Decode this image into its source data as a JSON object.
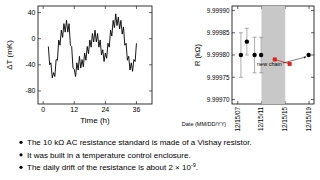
{
  "chart_data": [
    {
      "type": "line",
      "color": "#000000",
      "grid": false,
      "x_label": "Time (h)",
      "y_label": "ΔT (mK)",
      "xlim": [
        -2,
        42
      ],
      "xticks": [
        0,
        12,
        24,
        36
      ],
      "ylim": [
        -100,
        50
      ],
      "yticks": [
        -80,
        -40,
        0,
        40
      ],
      "x": [
        2,
        2.5,
        3,
        3.5,
        4,
        4.5,
        5,
        5.5,
        6,
        6.5,
        7,
        7.5,
        8,
        8.5,
        9,
        9.5,
        10,
        10.5,
        11,
        11.5,
        12,
        12.5,
        13,
        13.5,
        14,
        14.5,
        15,
        15.5,
        16,
        16.5,
        17,
        17.5,
        18,
        18.5,
        19,
        19.5,
        20,
        20.5,
        21,
        21.5,
        22,
        22.5,
        23,
        23.5,
        24,
        24.5,
        25,
        25.5,
        26,
        26.5,
        27,
        27.5,
        28,
        28.5,
        29,
        29.5,
        30,
        30.5,
        31,
        31.5,
        32,
        32.5,
        33,
        33.5,
        34,
        34.5,
        35,
        35.5,
        36
      ],
      "values": [
        -12,
        -40,
        -37,
        -60,
        -52,
        -58,
        -32,
        -33,
        -2,
        -10,
        13,
        2,
        23,
        10,
        28,
        10,
        23,
        -10,
        -12,
        -45,
        -47,
        -58,
        -37,
        -48,
        -27,
        -45,
        -32,
        -43,
        -22,
        -33,
        -12,
        -23,
        -2,
        -13,
        8,
        -5,
        13,
        -5,
        8,
        -13,
        -2,
        -25,
        -17,
        -35,
        -22,
        -30,
        -7,
        -13,
        13,
        4,
        28,
        17,
        38,
        20,
        33,
        15,
        28,
        7,
        18,
        -10,
        -7,
        -33,
        -27,
        -48,
        -37,
        -50,
        -32,
        -35,
        -7
      ]
    },
    {
      "type": "scatter",
      "grid": false,
      "x_label": "Date (MM/DD/YY)",
      "y_label": "R (kΩ)",
      "xlim": [
        2007,
        2020.8
      ],
      "xticks": [
        {
          "value": 2007.96,
          "label": "12/15/07"
        },
        {
          "value": 2011.96,
          "label": "12/15/11"
        },
        {
          "value": 2015.96,
          "label": "12/15/15"
        },
        {
          "value": 2019.96,
          "label": "12/15/19"
        }
      ],
      "ylim": [
        9.99969,
        9.99991
      ],
      "yticks": [
        {
          "value": 9.9997,
          "label": "9.99970"
        },
        9.99975,
        {
          "value": 9.9998,
          "label": "9.99980"
        },
        9.99985,
        {
          "value": 9.9999,
          "label": "9.99990"
        }
      ],
      "shaded_x": [
        2011.96,
        2015.96
      ],
      "series": [
        {
          "color": "#000000",
          "marker": "circle",
          "x": [
            2008.5,
            2009.5,
            2010.8,
            2011.9,
            2019.9
          ],
          "values": [
            9.9998,
            9.99983,
            9.9998,
            9.9998,
            9.9998
          ],
          "errors": [
            5e-05,
            3e-05,
            4e-05,
            4e-05,
            null
          ]
        },
        {
          "color": "#e0201b",
          "marker": "square",
          "line_style": "solid",
          "x": [
            2014.2,
            2016.7
          ],
          "values": [
            9.99979,
            9.99978
          ]
        }
      ],
      "annotations": [
        {
          "text": "new chain"
        }
      ]
    }
  ],
  "bullets": [
    {
      "text": "The 10 kΩ AC resistance standard is made of a Vishay resistor."
    },
    {
      "text": "It was built in a temperature control enclosure."
    },
    {
      "text": "The daily drift of the resistance is about 2 × 10",
      "sup": "-9",
      "after": "."
    }
  ]
}
